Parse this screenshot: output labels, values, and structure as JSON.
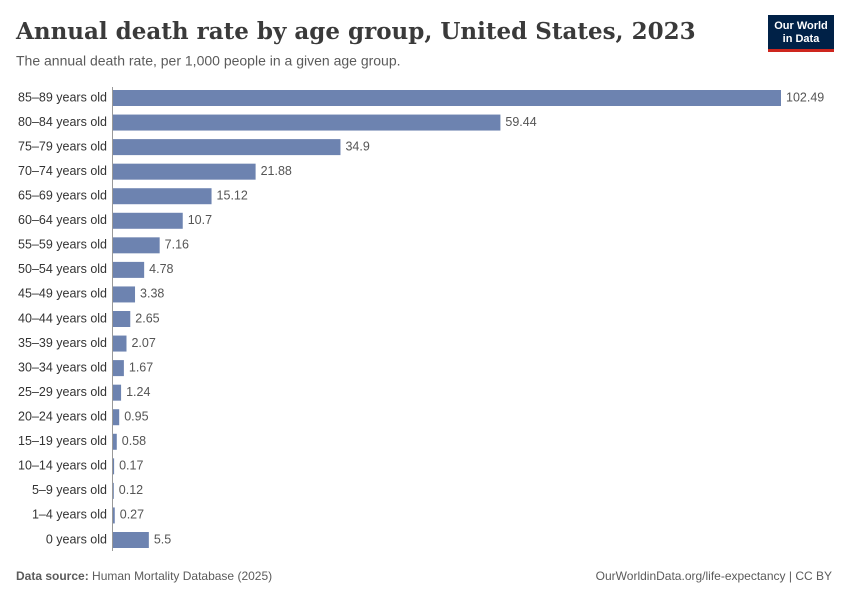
{
  "chart_data": {
    "type": "bar",
    "orientation": "horizontal",
    "title": "Annual death rate by age group, United States, 2023",
    "subtitle": "The annual death rate, per 1,000 people in a given age group.",
    "categories": [
      "85–89 years old",
      "80–84 years old",
      "75–79 years old",
      "70–74 years old",
      "65–69 years old",
      "60–64 years old",
      "55–59 years old",
      "50–54 years old",
      "45–49 years old",
      "40–44 years old",
      "35–39 years old",
      "30–34 years old",
      "25–29 years old",
      "20–24 years old",
      "15–19 years old",
      "10–14 years old",
      "5–9 years old",
      "1–4 years old",
      "0 years old"
    ],
    "values": [
      102.49,
      59.44,
      34.9,
      21.88,
      15.12,
      10.7,
      7.16,
      4.78,
      3.38,
      2.65,
      2.07,
      1.67,
      1.24,
      0.95,
      0.58,
      0.17,
      0.12,
      0.27,
      5.5
    ],
    "color": "#6d83b0"
  },
  "logo": {
    "lines": [
      "Our World",
      "in Data"
    ]
  },
  "footer": {
    "source_label": "Data source:",
    "source": "Human Mortality Database (2025)",
    "url": "OurWorldinData.org/life-expectancy | CC BY"
  }
}
